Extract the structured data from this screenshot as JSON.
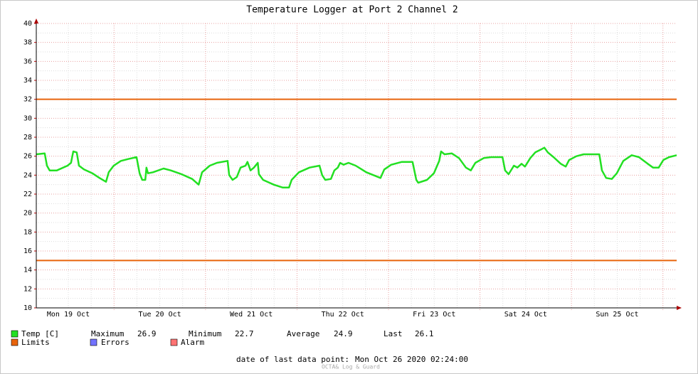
{
  "chart_data": {
    "type": "line",
    "title": "Temperature Logger at Port 2 Channel 2",
    "x": [
      0,
      2.2,
      2.8,
      3.5,
      5.4,
      8.2,
      9.1,
      9.7,
      10.6,
      11.2,
      12.5,
      14.7,
      16.6,
      18.3,
      19.0,
      20.3,
      22.2,
      24.1,
      26.3,
      27.1,
      27.8,
      28.6,
      28.9,
      29.3,
      30.6,
      33.4,
      35.3,
      38.1,
      40.9,
      42.6,
      43.5,
      45.5,
      47.4,
      50.2,
      50.6,
      51.5,
      52.6,
      53.6,
      54.9,
      55.4,
      56.2,
      57.1,
      58.1,
      58.4,
      59.5,
      62.3,
      64.6,
      66.3,
      67.0,
      68.9,
      71.7,
      74.3,
      75.0,
      75.8,
      77.3,
      78.2,
      79.1,
      79.7,
      80.6,
      81.9,
      83.8,
      86.6,
      90.3,
      91.3,
      93.1,
      95.9,
      98.7,
      99.7,
      100.2,
      102.5,
      104.3,
      105.7,
      106.2,
      107.1,
      109.0,
      110.9,
      112.7,
      114.0,
      115.2,
      117.4,
      119.3,
      122.3,
      123.0,
      123.9,
      125.3,
      126.2,
      127.3,
      128.2,
      129.6,
      130.9,
      132.4,
      133.3,
      134.2,
      135.7,
      137.6,
      138.9,
      139.8,
      141.7,
      143.6,
      147.7,
      148.4,
      149.5,
      151.0,
      152.3,
      154.0,
      156.2,
      158.1,
      160.4,
      161.8,
      163.3,
      164.5,
      166.0,
      168.0
    ],
    "series": [
      {
        "name": "Temp [C]",
        "color": "#22e022",
        "values": [
          26.2,
          26.3,
          25.0,
          24.5,
          24.5,
          25.0,
          25.3,
          26.5,
          26.4,
          25.0,
          24.6,
          24.2,
          23.7,
          23.3,
          24.3,
          25.0,
          25.5,
          25.7,
          25.9,
          24.2,
          23.5,
          23.5,
          24.8,
          24.2,
          24.3,
          24.7,
          24.5,
          24.1,
          23.6,
          23.0,
          24.3,
          25.0,
          25.3,
          25.5,
          24.0,
          23.5,
          23.8,
          24.8,
          25.0,
          25.4,
          24.5,
          24.8,
          25.3,
          24.1,
          23.5,
          23.0,
          22.7,
          22.7,
          23.5,
          24.3,
          24.8,
          25.0,
          24.0,
          23.5,
          23.6,
          24.5,
          24.8,
          25.3,
          25.1,
          25.3,
          25.0,
          24.3,
          23.7,
          24.6,
          25.1,
          25.4,
          25.4,
          23.5,
          23.2,
          23.5,
          24.2,
          25.5,
          26.5,
          26.2,
          26.3,
          25.8,
          24.8,
          24.5,
          25.3,
          25.8,
          25.9,
          25.9,
          24.5,
          24.1,
          25.0,
          24.8,
          25.2,
          24.9,
          25.8,
          26.4,
          26.7,
          26.9,
          26.4,
          25.9,
          25.2,
          24.9,
          25.6,
          26.0,
          26.2,
          26.2,
          24.5,
          23.7,
          23.6,
          24.2,
          25.5,
          26.1,
          25.9,
          25.2,
          24.8,
          24.8,
          25.6,
          25.9,
          26.1
        ]
      }
    ],
    "limits": {
      "name": "Limits",
      "color": "#e8640c",
      "values": [
        32,
        15
      ]
    },
    "legend_extra": [
      {
        "name": "Errors",
        "color": "#7373ff"
      },
      {
        "name": "Alarm",
        "color": "#ff7373"
      }
    ],
    "stats": [
      {
        "label": "Maximum",
        "value": 26.9
      },
      {
        "label": "Minimum",
        "value": 22.7
      },
      {
        "label": "Average",
        "value": 24.9
      },
      {
        "label": "Last",
        "value": 26.1
      }
    ],
    "xlim": [
      0,
      168
    ],
    "xticks": [
      {
        "value": 8.4,
        "label": "Mon 19 Oct"
      },
      {
        "value": 32.4,
        "label": "Tue 20 Oct"
      },
      {
        "value": 56.4,
        "label": "Wed 21 Oct"
      },
      {
        "value": 80.4,
        "label": "Thu 22 Oct"
      },
      {
        "value": 104.4,
        "label": "Fri 23 Oct"
      },
      {
        "value": 128.4,
        "label": "Sat 24 Oct"
      },
      {
        "value": 152.4,
        "label": "Sun 25 Oct"
      }
    ],
    "ylim": [
      10,
      40
    ],
    "yticks": [
      10,
      12,
      14,
      16,
      18,
      20,
      22,
      24,
      26,
      28,
      30,
      32,
      34,
      36,
      38,
      40
    ],
    "grid": true,
    "footer_label": "date of last data point:",
    "footer_value": "Mon Oct 26 2020 02:24:00",
    "watermark": "OCTA& Log & Guard"
  }
}
